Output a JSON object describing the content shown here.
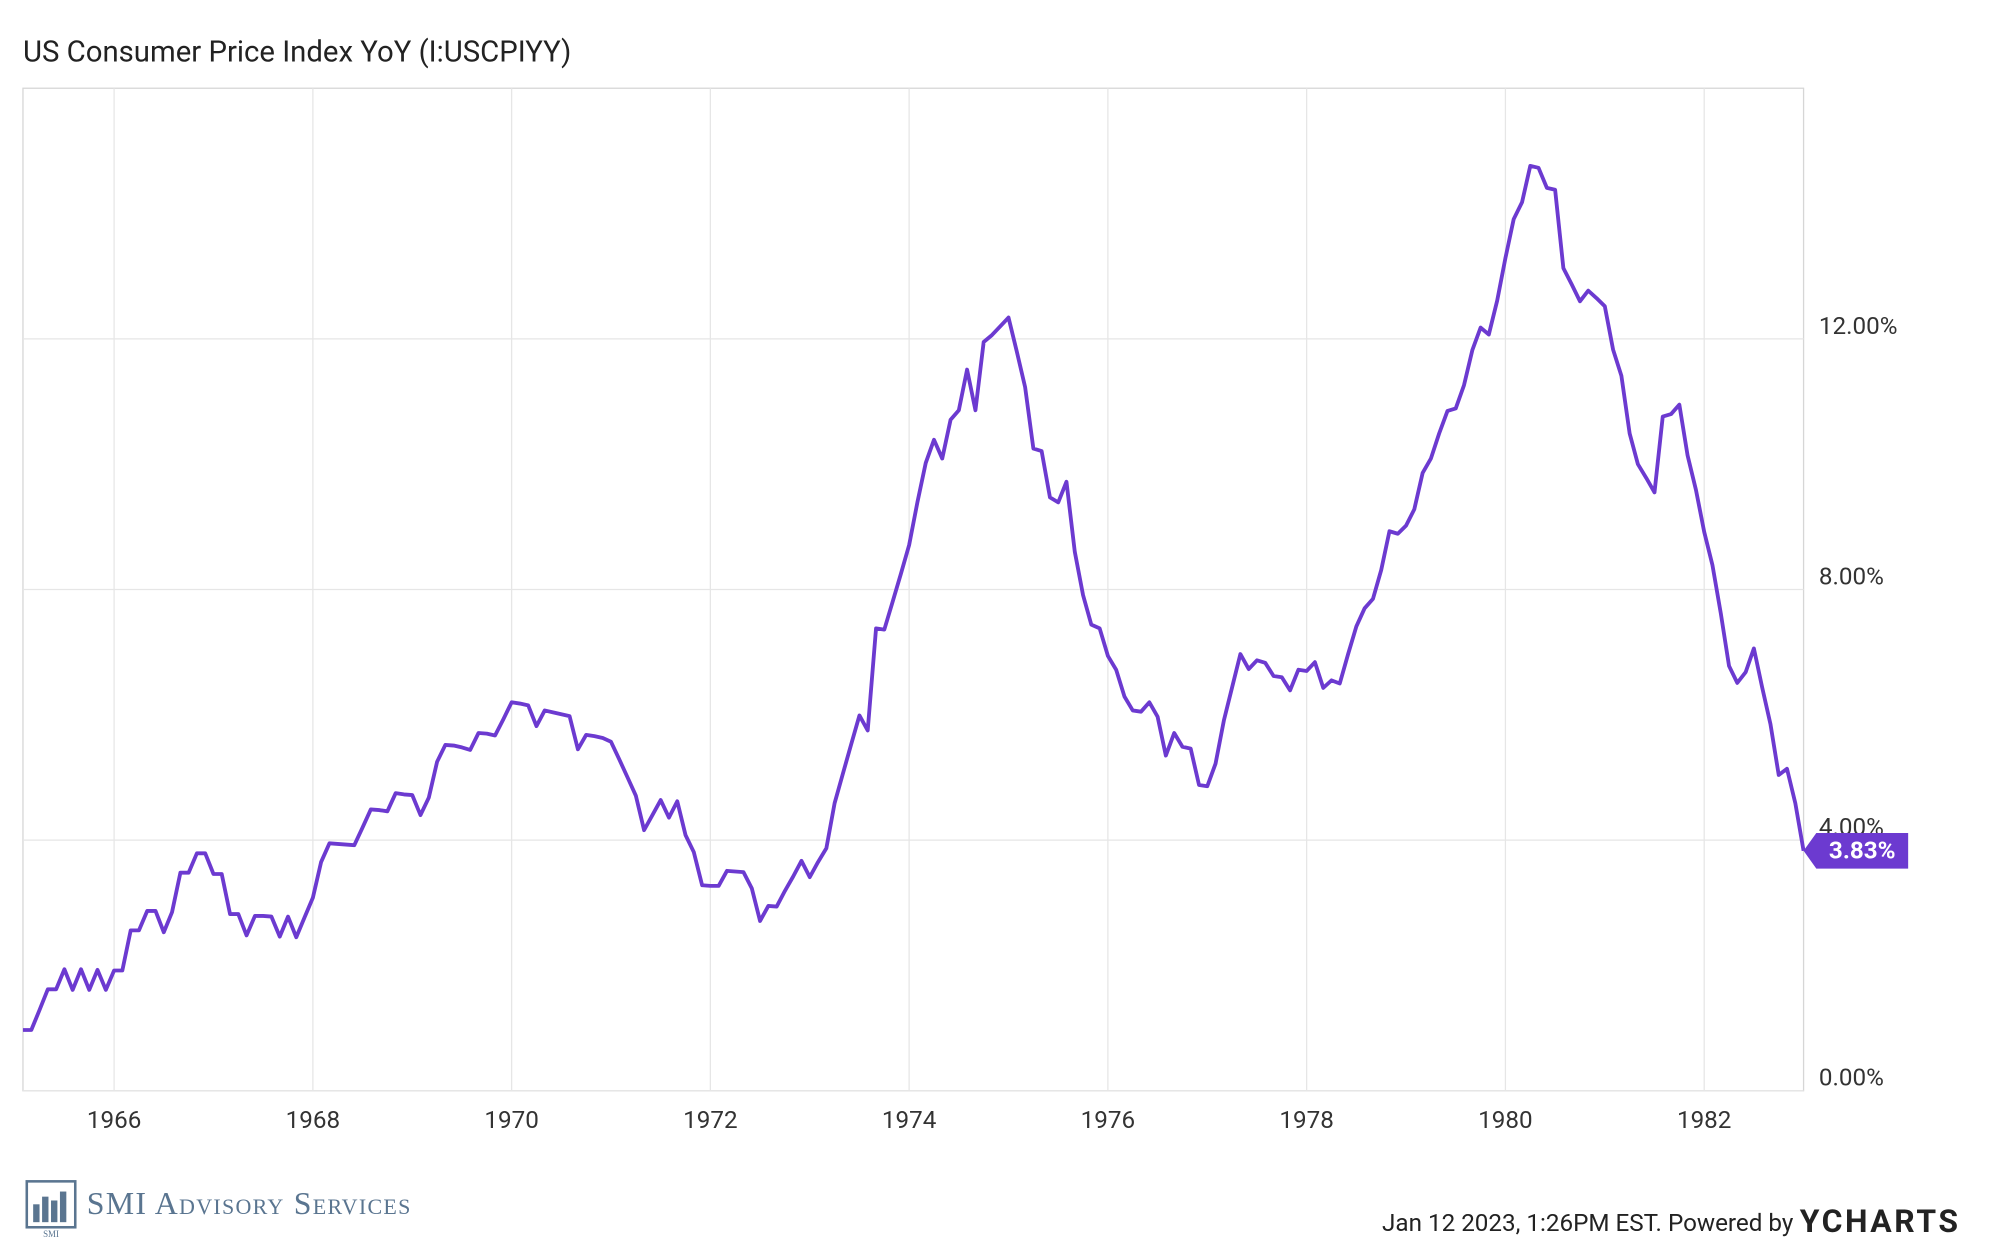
{
  "chart_data": {
    "type": "line",
    "title": "US Consumer Price Index YoY (I:USCPIYY)",
    "x": [
      1965.083,
      1965.167,
      1965.25,
      1965.333,
      1965.417,
      1965.5,
      1965.583,
      1965.667,
      1965.75,
      1965.833,
      1965.917,
      1966.0,
      1966.083,
      1966.167,
      1966.25,
      1966.333,
      1966.417,
      1966.5,
      1966.583,
      1966.667,
      1966.75,
      1966.833,
      1966.917,
      1967.0,
      1967.083,
      1967.167,
      1967.25,
      1967.333,
      1967.417,
      1967.5,
      1967.583,
      1967.667,
      1967.75,
      1967.833,
      1967.917,
      1968.0,
      1968.083,
      1968.167,
      1968.25,
      1968.333,
      1968.417,
      1968.5,
      1968.583,
      1968.667,
      1968.75,
      1968.833,
      1968.917,
      1969.0,
      1969.083,
      1969.167,
      1969.25,
      1969.333,
      1969.417,
      1969.5,
      1969.583,
      1969.667,
      1969.75,
      1969.833,
      1969.917,
      1970.0,
      1970.083,
      1970.167,
      1970.25,
      1970.333,
      1970.417,
      1970.5,
      1970.583,
      1970.667,
      1970.75,
      1970.833,
      1970.917,
      1971.0,
      1971.083,
      1971.167,
      1971.25,
      1971.333,
      1971.417,
      1971.5,
      1971.583,
      1971.667,
      1971.75,
      1971.833,
      1971.917,
      1972.0,
      1972.083,
      1972.167,
      1972.25,
      1972.333,
      1972.417,
      1972.5,
      1972.583,
      1972.667,
      1972.75,
      1972.833,
      1972.917,
      1973.0,
      1973.083,
      1973.167,
      1973.25,
      1973.333,
      1973.417,
      1973.5,
      1973.583,
      1973.667,
      1973.75,
      1973.833,
      1973.917,
      1974.0,
      1974.083,
      1974.167,
      1974.25,
      1974.333,
      1974.417,
      1974.5,
      1974.583,
      1974.667,
      1974.75,
      1974.833,
      1974.917,
      1975.0,
      1975.083,
      1975.167,
      1975.25,
      1975.333,
      1975.417,
      1975.5,
      1975.583,
      1975.667,
      1975.75,
      1975.833,
      1975.917,
      1976.0,
      1976.083,
      1976.167,
      1976.25,
      1976.333,
      1976.417,
      1976.5,
      1976.583,
      1976.667,
      1976.75,
      1976.833,
      1976.917,
      1977.0,
      1977.083,
      1977.167,
      1977.25,
      1977.333,
      1977.417,
      1977.5,
      1977.583,
      1977.667,
      1977.75,
      1977.833,
      1977.917,
      1978.0,
      1978.083,
      1978.167,
      1978.25,
      1978.333,
      1978.417,
      1978.5,
      1978.583,
      1978.667,
      1978.75,
      1978.833,
      1978.917,
      1979.0,
      1979.083,
      1979.167,
      1979.25,
      1979.333,
      1979.417,
      1979.5,
      1979.583,
      1979.667,
      1979.75,
      1979.833,
      1979.917,
      1980.0,
      1980.083,
      1980.167,
      1980.25,
      1980.333,
      1980.417,
      1980.5,
      1980.583,
      1980.667,
      1980.75,
      1980.833,
      1980.917,
      1981.0,
      1981.083,
      1981.167,
      1981.25,
      1981.333,
      1981.417,
      1981.5,
      1981.583,
      1981.667,
      1981.75,
      1981.833,
      1981.917,
      1982.0,
      1982.083,
      1982.167,
      1982.25,
      1982.333,
      1982.417,
      1982.5,
      1982.583,
      1982.667,
      1982.75,
      1982.833,
      1982.917,
      1983.0
    ],
    "series": [
      {
        "name": "US Consumer Price Index YoY",
        "color": "#6c3ad0",
        "values": [
          0.97,
          0.97,
          1.29,
          1.62,
          1.62,
          1.94,
          1.61,
          1.94,
          1.61,
          1.93,
          1.61,
          1.92,
          1.92,
          2.56,
          2.56,
          2.87,
          2.87,
          2.53,
          2.85,
          3.48,
          3.48,
          3.79,
          3.79,
          3.46,
          3.46,
          2.82,
          2.82,
          2.48,
          2.79,
          2.79,
          2.78,
          2.46,
          2.78,
          2.45,
          2.77,
          3.08,
          3.65,
          3.95,
          3.94,
          3.93,
          3.92,
          4.2,
          4.49,
          4.48,
          4.46,
          4.75,
          4.73,
          4.72,
          4.4,
          4.68,
          5.25,
          5.52,
          5.51,
          5.48,
          5.44,
          5.71,
          5.7,
          5.67,
          5.93,
          6.2,
          6.18,
          6.15,
          5.82,
          6.07,
          6.04,
          6.01,
          5.98,
          5.45,
          5.68,
          5.66,
          5.63,
          5.57,
          5.29,
          5.0,
          4.71,
          4.16,
          4.4,
          4.64,
          4.36,
          4.62,
          4.08,
          3.81,
          3.28,
          3.27,
          3.27,
          3.51,
          3.5,
          3.49,
          3.23,
          2.71,
          2.95,
          2.94,
          3.19,
          3.42,
          3.67,
          3.41,
          3.65,
          3.87,
          4.59,
          5.06,
          5.53,
          5.99,
          5.75,
          7.38,
          7.36,
          7.8,
          8.25,
          8.71,
          9.39,
          10.02,
          10.39,
          10.09,
          10.71,
          10.86,
          11.51,
          10.86,
          11.95,
          12.06,
          12.2,
          12.34,
          11.8,
          11.23,
          10.25,
          10.21,
          9.47,
          9.39,
          9.72,
          8.6,
          7.91,
          7.44,
          7.38,
          6.94,
          6.72,
          6.29,
          6.07,
          6.05,
          6.2,
          5.97,
          5.35,
          5.71,
          5.49,
          5.46,
          4.88,
          4.86,
          5.22,
          5.91,
          6.44,
          6.97,
          6.73,
          6.87,
          6.83,
          6.62,
          6.6,
          6.39,
          6.72,
          6.7,
          6.84,
          6.43,
          6.55,
          6.5,
          6.97,
          7.41,
          7.7,
          7.85,
          8.31,
          8.93,
          8.89,
          9.02,
          9.28,
          9.86,
          10.09,
          10.49,
          10.85,
          10.89,
          11.26,
          11.82,
          12.18,
          12.07,
          12.61,
          13.29,
          13.91,
          14.18,
          14.76,
          14.73,
          14.41,
          14.38,
          13.13,
          12.87,
          12.6,
          12.77,
          12.65,
          12.52,
          11.83,
          11.41,
          10.49,
          10.0,
          9.78,
          9.55,
          10.76,
          10.8,
          10.95,
          10.14,
          9.59,
          8.92,
          8.39,
          7.62,
          6.78,
          6.51,
          6.68,
          7.06,
          6.44,
          5.85,
          5.04,
          5.14,
          4.59,
          3.83
        ]
      }
    ],
    "last_label": "3.83%",
    "xlim": [
      1965.083,
      1983.0
    ],
    "xticks": [
      1966,
      1968,
      1970,
      1972,
      1974,
      1976,
      1978,
      1980,
      1982
    ],
    "ylim": [
      0,
      16
    ],
    "yticks": [
      {
        "value": 0,
        "label": "0.00%"
      },
      {
        "value": 4,
        "label": "4.00%"
      },
      {
        "value": 8,
        "label": "8.00%"
      },
      {
        "value": 12,
        "label": "12.00%"
      }
    ],
    "grid": true
  },
  "footer": {
    "logo_mark": "SMI",
    "logo_text": "SMI Advisory Services",
    "timestamp": "Jan 12 2023, 1:26PM EST. Powered by",
    "brand": "YCHARTS"
  }
}
